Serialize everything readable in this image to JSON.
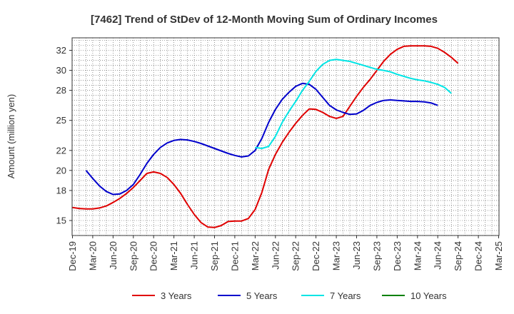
{
  "chart_data": {
    "type": "line",
    "title": "[7462]  Trend of StDev of 12-Month Moving Sum of Ordinary Incomes",
    "xlabel": "",
    "ylabel": "Amount (million yen)",
    "ylim": [
      13.5,
      33.25
    ],
    "y_ticks": [
      15,
      18,
      20,
      22,
      25,
      28,
      30,
      32
    ],
    "y_tick_labels": [
      "15",
      "18",
      "20",
      "22",
      "25",
      "28",
      "30",
      "32"
    ],
    "x_tick_labels": [
      "Dec-19",
      "Mar-20",
      "Jun-20",
      "Sep-20",
      "Dec-20",
      "Mar-21",
      "Jun-21",
      "Sep-21",
      "Dec-21",
      "Mar-22",
      "Jun-22",
      "Sep-22",
      "Dec-22",
      "Mar-23",
      "Jun-23",
      "Sep-23",
      "Dec-23",
      "Mar-24",
      "Jun-24",
      "Sep-24",
      "Dec-24",
      "Mar-25"
    ],
    "grid": true,
    "legend_position": "bottom",
    "series": [
      {
        "name": "3 Years",
        "color": "#e00000",
        "start_month": 0,
        "values": [
          16.3,
          16.2,
          16.15,
          16.15,
          16.25,
          16.45,
          16.8,
          17.2,
          17.7,
          18.3,
          19.0,
          19.7,
          19.85,
          19.7,
          19.3,
          18.6,
          17.7,
          16.6,
          15.6,
          14.8,
          14.35,
          14.3,
          14.5,
          14.9,
          14.95,
          14.95,
          15.2,
          16.1,
          17.8,
          20.1,
          21.6,
          22.8,
          23.8,
          24.7,
          25.5,
          26.15,
          26.1,
          25.8,
          25.4,
          25.2,
          25.4,
          26.4,
          27.4,
          28.3,
          29.1,
          30.0,
          30.9,
          31.6,
          32.1,
          32.4,
          32.45,
          32.45,
          32.45,
          32.4,
          32.2,
          31.8,
          31.3,
          30.7
        ]
      },
      {
        "name": "5 Years",
        "color": "#0000cc",
        "start_month": 2,
        "values": [
          20.0,
          19.2,
          18.45,
          17.9,
          17.6,
          17.65,
          18.0,
          18.6,
          19.6,
          20.7,
          21.6,
          22.3,
          22.75,
          23.0,
          23.1,
          23.05,
          22.9,
          22.7,
          22.45,
          22.2,
          21.95,
          21.7,
          21.5,
          21.35,
          21.45,
          22.0,
          23.2,
          24.8,
          26.1,
          27.1,
          27.8,
          28.4,
          28.7,
          28.6,
          28.1,
          27.3,
          26.5,
          26.05,
          25.8,
          25.6,
          25.65,
          26.0,
          26.5,
          26.8,
          27.0,
          27.05,
          27.0,
          26.95,
          26.9,
          26.9,
          26.85,
          26.75,
          26.5
        ]
      },
      {
        "name": "7 Years",
        "color": "#00e5e5",
        "start_month": 27,
        "values": [
          22.3,
          22.2,
          22.4,
          23.4,
          24.8,
          25.9,
          26.9,
          28.0,
          28.9,
          29.9,
          30.6,
          31.0,
          31.1,
          31.0,
          30.9,
          30.7,
          30.5,
          30.3,
          30.1,
          30.0,
          29.85,
          29.6,
          29.4,
          29.2,
          29.05,
          28.95,
          28.8,
          28.6,
          28.3,
          27.7
        ]
      },
      {
        "name": "10 Years",
        "color": "#008000",
        "start_month": 0,
        "values": []
      }
    ]
  }
}
